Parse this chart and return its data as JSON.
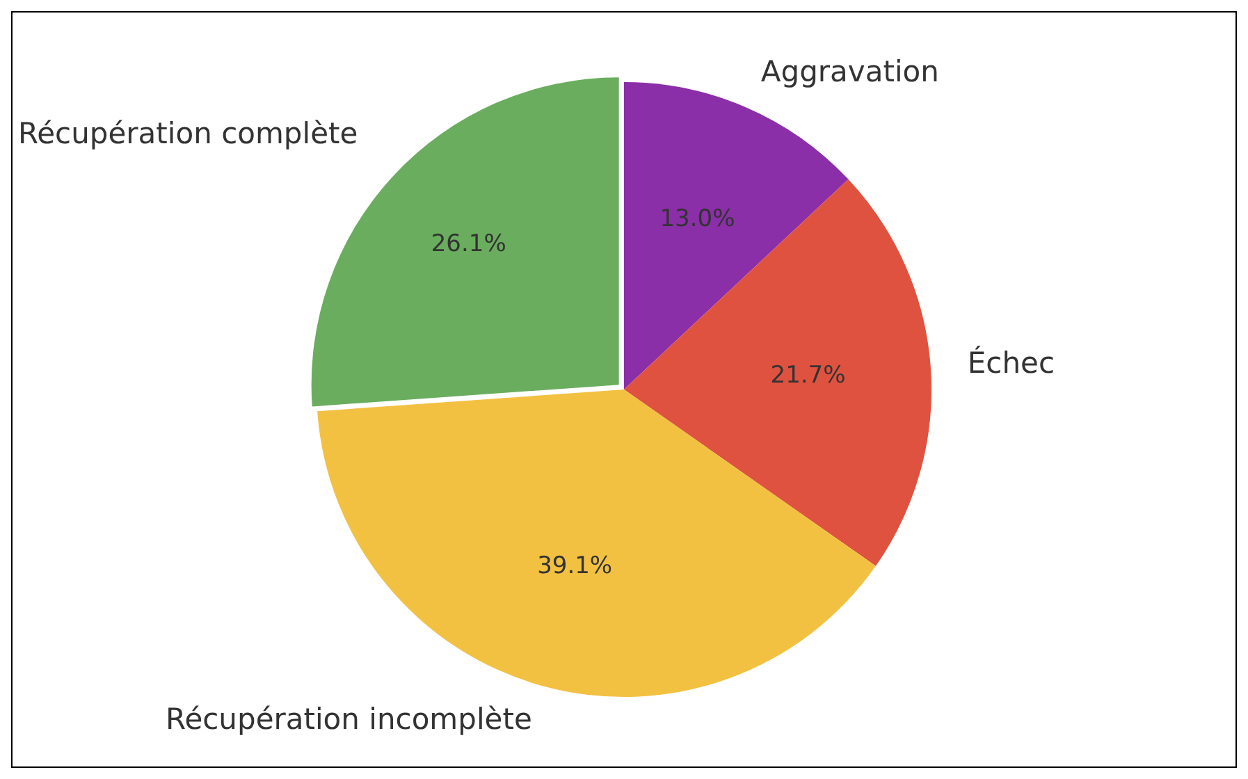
{
  "chart_data": {
    "type": "pie",
    "categories": [
      "Aggravation",
      "Échec",
      "Récupération incomplète",
      "Récupération complète"
    ],
    "values": [
      13.0,
      21.7,
      39.1,
      26.1
    ],
    "colors": [
      "#8b2fa8",
      "#e05240",
      "#f3c142",
      "#6aad5e"
    ],
    "value_labels": [
      "13.0%",
      "21.7%",
      "39.1%",
      "26.1%"
    ],
    "legend": false
  }
}
